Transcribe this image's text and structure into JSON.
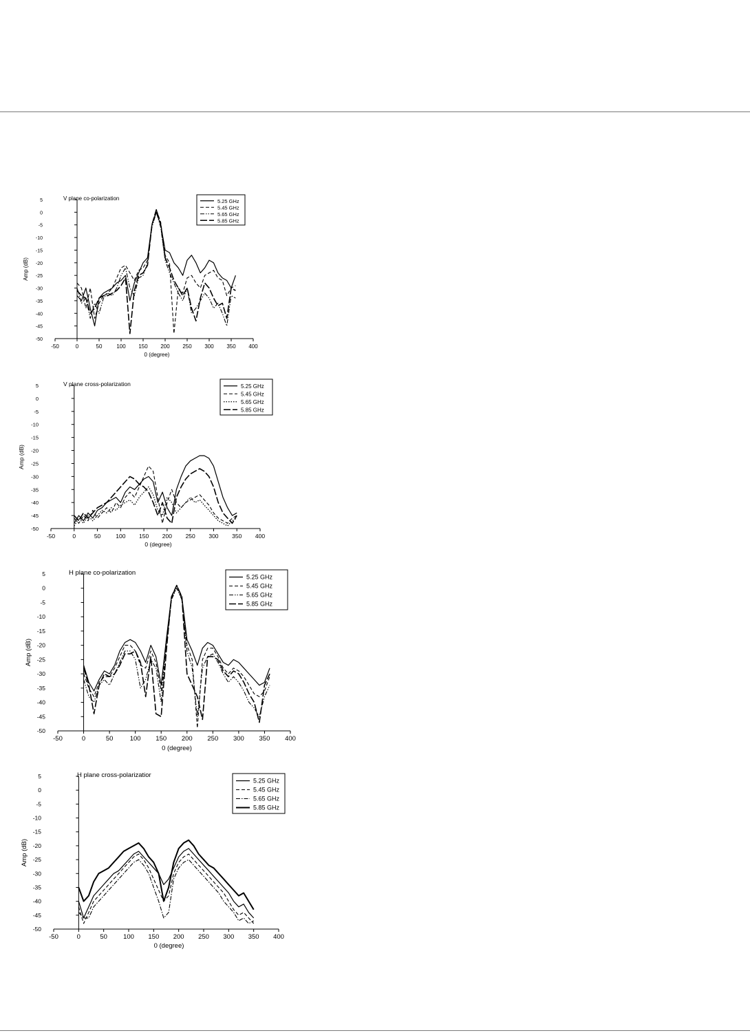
{
  "chart_data": [
    {
      "type": "line",
      "title": "V plane co-polarization",
      "xlabel": "0 (degree)",
      "ylabel": "Amp (dB)",
      "xlim": [
        -50,
        400
      ],
      "ylim": [
        -50,
        5
      ],
      "xticks": [
        -50,
        0,
        50,
        100,
        150,
        200,
        250,
        300,
        350,
        400
      ],
      "yticks": [
        5,
        0,
        -5,
        -10,
        -15,
        -20,
        -25,
        -30,
        -35,
        -40,
        -45,
        -50
      ],
      "grid": false,
      "legend_position": "top-right",
      "x": [
        0,
        10,
        20,
        30,
        40,
        50,
        60,
        70,
        80,
        90,
        100,
        110,
        120,
        130,
        140,
        150,
        160,
        170,
        180,
        190,
        200,
        210,
        220,
        230,
        240,
        250,
        260,
        270,
        280,
        290,
        300,
        310,
        320,
        330,
        340,
        350,
        360
      ],
      "series": [
        {
          "name": "5.25 GHz",
          "style": "solid",
          "values": [
            -33,
            -35,
            -30,
            -38,
            -45,
            -34,
            -32,
            -31,
            -30,
            -28,
            -27,
            -25,
            -35,
            -28,
            -24,
            -20,
            -18,
            -5,
            0,
            -5,
            -15,
            -16,
            -20,
            -22,
            -25,
            -19,
            -17,
            -20,
            -24,
            -22,
            -19,
            -20,
            -24,
            -26,
            -27,
            -30,
            -25
          ]
        },
        {
          "name": "5.45 GHz",
          "style": "dashed",
          "values": [
            -28,
            -30,
            -38,
            -30,
            -42,
            -36,
            -33,
            -32,
            -30,
            -26,
            -22,
            -21,
            -24,
            -27,
            -23,
            -22,
            -19,
            -5,
            1,
            -4,
            -17,
            -20,
            -48,
            -30,
            -32,
            -26,
            -25,
            -28,
            -30,
            -25,
            -24,
            -23,
            -26,
            -27,
            -33,
            -30,
            -29
          ]
        },
        {
          "name": "5.65 GHz",
          "style": "dashdotdot",
          "values": [
            -30,
            -36,
            -34,
            -42,
            -36,
            -40,
            -34,
            -32,
            -33,
            -30,
            -25,
            -22,
            -30,
            -33,
            -26,
            -25,
            -20,
            -6,
            0,
            -6,
            -19,
            -24,
            -28,
            -32,
            -35,
            -30,
            -40,
            -38,
            -35,
            -32,
            -34,
            -38,
            -36,
            -40,
            -45,
            -33,
            -34
          ]
        },
        {
          "name": "5.85 GHz",
          "style": "longdash",
          "values": [
            -31,
            -33,
            -34,
            -40,
            -38,
            -34,
            -33,
            -33,
            -32,
            -31,
            -29,
            -26,
            -48,
            -31,
            -25,
            -24,
            -21,
            -5,
            1,
            -5,
            -18,
            -22,
            -27,
            -30,
            -33,
            -30,
            -38,
            -43,
            -34,
            -28,
            -30,
            -34,
            -37,
            -36,
            -42,
            -30,
            -31
          ]
        }
      ]
    },
    {
      "type": "line",
      "title": "V plane cross-polarization",
      "xlabel": "0 (degree)",
      "ylabel": "Amp (dB)",
      "xlim": [
        -50,
        400
      ],
      "ylim": [
        -50,
        5
      ],
      "xticks": [
        -50,
        0,
        50,
        100,
        150,
        200,
        250,
        300,
        350,
        400
      ],
      "yticks": [
        5,
        0,
        -5,
        -10,
        -15,
        -20,
        -25,
        -30,
        -35,
        -40,
        -45,
        -50
      ],
      "grid": false,
      "legend_position": "top-right",
      "x": [
        0,
        10,
        20,
        30,
        40,
        50,
        60,
        70,
        80,
        90,
        100,
        110,
        120,
        130,
        140,
        150,
        160,
        170,
        180,
        190,
        200,
        210,
        220,
        230,
        240,
        250,
        260,
        270,
        280,
        290,
        300,
        310,
        320,
        330,
        340,
        350
      ],
      "series": [
        {
          "name": "5.25 GHz",
          "style": "solid",
          "values": [
            -48,
            -45,
            -47,
            -44,
            -46,
            -43,
            -42,
            -40,
            -39,
            -38,
            -40,
            -36,
            -34,
            -35,
            -33,
            -31,
            -30,
            -32,
            -40,
            -36,
            -42,
            -45,
            -35,
            -30,
            -26,
            -24,
            -23,
            -22,
            -22,
            -23,
            -26,
            -32,
            -38,
            -42,
            -45,
            -44
          ]
        },
        {
          "name": "5.45 GHz",
          "style": "dashed",
          "values": [
            -46,
            -48,
            -45,
            -47,
            -43,
            -46,
            -44,
            -42,
            -44,
            -40,
            -42,
            -38,
            -36,
            -38,
            -34,
            -30,
            -26,
            -28,
            -38,
            -48,
            -40,
            -35,
            -40,
            -42,
            -40,
            -39,
            -38,
            -37,
            -39,
            -41,
            -44,
            -46,
            -47,
            -48,
            -46,
            -45
          ]
        },
        {
          "name": "5.65 GHz",
          "style": "dotted",
          "values": [
            -49,
            -46,
            -48,
            -45,
            -47,
            -45,
            -43,
            -44,
            -42,
            -43,
            -41,
            -40,
            -39,
            -41,
            -38,
            -36,
            -34,
            -37,
            -43,
            -45,
            -38,
            -40,
            -44,
            -42,
            -40,
            -38,
            -40,
            -39,
            -41,
            -43,
            -45,
            -47,
            -48,
            -49,
            -47,
            -46
          ]
        },
        {
          "name": "5.85 GHz",
          "style": "longdash",
          "values": [
            -45,
            -47,
            -44,
            -46,
            -44,
            -42,
            -41,
            -40,
            -38,
            -36,
            -34,
            -32,
            -30,
            -31,
            -33,
            -34,
            -36,
            -40,
            -45,
            -40,
            -46,
            -48,
            -38,
            -34,
            -31,
            -29,
            -28,
            -27,
            -28,
            -30,
            -34,
            -40,
            -44,
            -46,
            -48,
            -45
          ]
        }
      ]
    },
    {
      "type": "line",
      "title": "H plane co-polarization",
      "xlabel": "0 (degree)",
      "ylabel": "Amp (dB)",
      "xlim": [
        -50,
        400
      ],
      "ylim": [
        -50,
        5
      ],
      "xticks": [
        -50,
        0,
        50,
        100,
        150,
        200,
        250,
        300,
        350,
        400
      ],
      "yticks": [
        5,
        0,
        -5,
        -10,
        -15,
        -20,
        -25,
        -30,
        -35,
        -40,
        -45,
        -50
      ],
      "grid": false,
      "legend_position": "top-right",
      "x": [
        0,
        10,
        20,
        30,
        40,
        50,
        60,
        70,
        80,
        90,
        100,
        110,
        120,
        130,
        140,
        150,
        160,
        170,
        180,
        190,
        200,
        210,
        220,
        230,
        240,
        250,
        260,
        270,
        280,
        290,
        300,
        310,
        320,
        330,
        340,
        350,
        360
      ],
      "series": [
        {
          "name": "5.25 GHz",
          "style": "solid",
          "values": [
            -27,
            -33,
            -36,
            -32,
            -29,
            -30,
            -27,
            -22,
            -19,
            -18,
            -19,
            -22,
            -26,
            -20,
            -24,
            -34,
            -18,
            -3,
            1,
            -3,
            -18,
            -22,
            -27,
            -21,
            -19,
            -20,
            -23,
            -26,
            -27,
            -25,
            -26,
            -28,
            -30,
            -32,
            -34,
            -33,
            -28
          ]
        },
        {
          "name": "5.45 GHz",
          "style": "dashed",
          "values": [
            -30,
            -35,
            -38,
            -33,
            -31,
            -31,
            -28,
            -24,
            -20,
            -20,
            -22,
            -27,
            -28,
            -22,
            -26,
            -36,
            -19,
            -4,
            1,
            -4,
            -20,
            -25,
            -49,
            -25,
            -21,
            -21,
            -24,
            -28,
            -30,
            -28,
            -29,
            -31,
            -34,
            -37,
            -38,
            -36,
            -31
          ]
        },
        {
          "name": "5.65 GHz",
          "style": "dashdotdot",
          "values": [
            -32,
            -38,
            -40,
            -34,
            -32,
            -34,
            -30,
            -26,
            -22,
            -22,
            -25,
            -35,
            -32,
            -25,
            -28,
            -40,
            -20,
            -4,
            0,
            -4,
            -22,
            -28,
            -45,
            -28,
            -24,
            -23,
            -26,
            -30,
            -33,
            -31,
            -33,
            -36,
            -40,
            -42,
            -45,
            -38,
            -34
          ]
        },
        {
          "name": "5.85 GHz",
          "style": "longdash",
          "values": [
            -28,
            -34,
            -44,
            -34,
            -30,
            -31,
            -30,
            -27,
            -23,
            -23,
            -22,
            -26,
            -38,
            -24,
            -44,
            -45,
            -22,
            -3,
            1,
            -3,
            -30,
            -34,
            -38,
            -46,
            -24,
            -24,
            -25,
            -29,
            -31,
            -29,
            -30,
            -33,
            -37,
            -40,
            -47,
            -34,
            -30
          ]
        }
      ]
    },
    {
      "type": "line",
      "title": "H plane cross-polarizatior",
      "xlabel": "0 (degree)",
      "ylabel": "Amp (dB)",
      "xlim": [
        -50,
        400
      ],
      "ylim": [
        -50,
        5
      ],
      "xticks": [
        -50,
        0,
        50,
        100,
        150,
        200,
        250,
        300,
        350,
        400
      ],
      "yticks": [
        5,
        0,
        -5,
        -10,
        -15,
        -20,
        -25,
        -30,
        -35,
        -40,
        -45,
        -50
      ],
      "grid": false,
      "legend_position": "top-right",
      "x": [
        0,
        10,
        20,
        30,
        40,
        50,
        60,
        70,
        80,
        90,
        100,
        110,
        120,
        130,
        140,
        150,
        160,
        170,
        180,
        190,
        200,
        210,
        220,
        230,
        240,
        250,
        260,
        270,
        280,
        290,
        300,
        310,
        320,
        330,
        340,
        350
      ],
      "series": [
        {
          "name": "5.25 GHz",
          "style": "solid",
          "values": [
            -40,
            -46,
            -42,
            -38,
            -36,
            -34,
            -32,
            -30,
            -29,
            -27,
            -25,
            -23,
            -22,
            -24,
            -26,
            -28,
            -30,
            -34,
            -32,
            -28,
            -24,
            -22,
            -21,
            -23,
            -25,
            -27,
            -29,
            -31,
            -33,
            -35,
            -37,
            -40,
            -42,
            -41,
            -44,
            -46
          ]
        },
        {
          "name": "5.45 GHz",
          "style": "dashed",
          "values": [
            -42,
            -48,
            -44,
            -40,
            -38,
            -36,
            -34,
            -32,
            -30,
            -28,
            -26,
            -24,
            -23,
            -25,
            -28,
            -32,
            -36,
            -40,
            -38,
            -30,
            -26,
            -24,
            -23,
            -25,
            -27,
            -29,
            -31,
            -33,
            -35,
            -37,
            -40,
            -43,
            -45,
            -44,
            -46,
            -48
          ]
        },
        {
          "name": "5.65 GHz",
          "style": "dashdot",
          "values": [
            -44,
            -46,
            -46,
            -42,
            -40,
            -38,
            -36,
            -34,
            -32,
            -30,
            -28,
            -26,
            -25,
            -27,
            -30,
            -35,
            -40,
            -46,
            -44,
            -32,
            -28,
            -26,
            -25,
            -27,
            -29,
            -31,
            -33,
            -35,
            -37,
            -40,
            -42,
            -44,
            -47,
            -46,
            -48,
            -47
          ]
        },
        {
          "name": "5.85 GHz",
          "style": "thick",
          "values": [
            -35,
            -40,
            -38,
            -33,
            -30,
            -29,
            -28,
            -26,
            -24,
            -22,
            -21,
            -20,
            -19,
            -21,
            -24,
            -26,
            -30,
            -40,
            -35,
            -26,
            -21,
            -19,
            -18,
            -20,
            -23,
            -25,
            -27,
            -28,
            -30,
            -32,
            -34,
            -36,
            -38,
            -37,
            -40,
            -43
          ]
        }
      ]
    }
  ]
}
